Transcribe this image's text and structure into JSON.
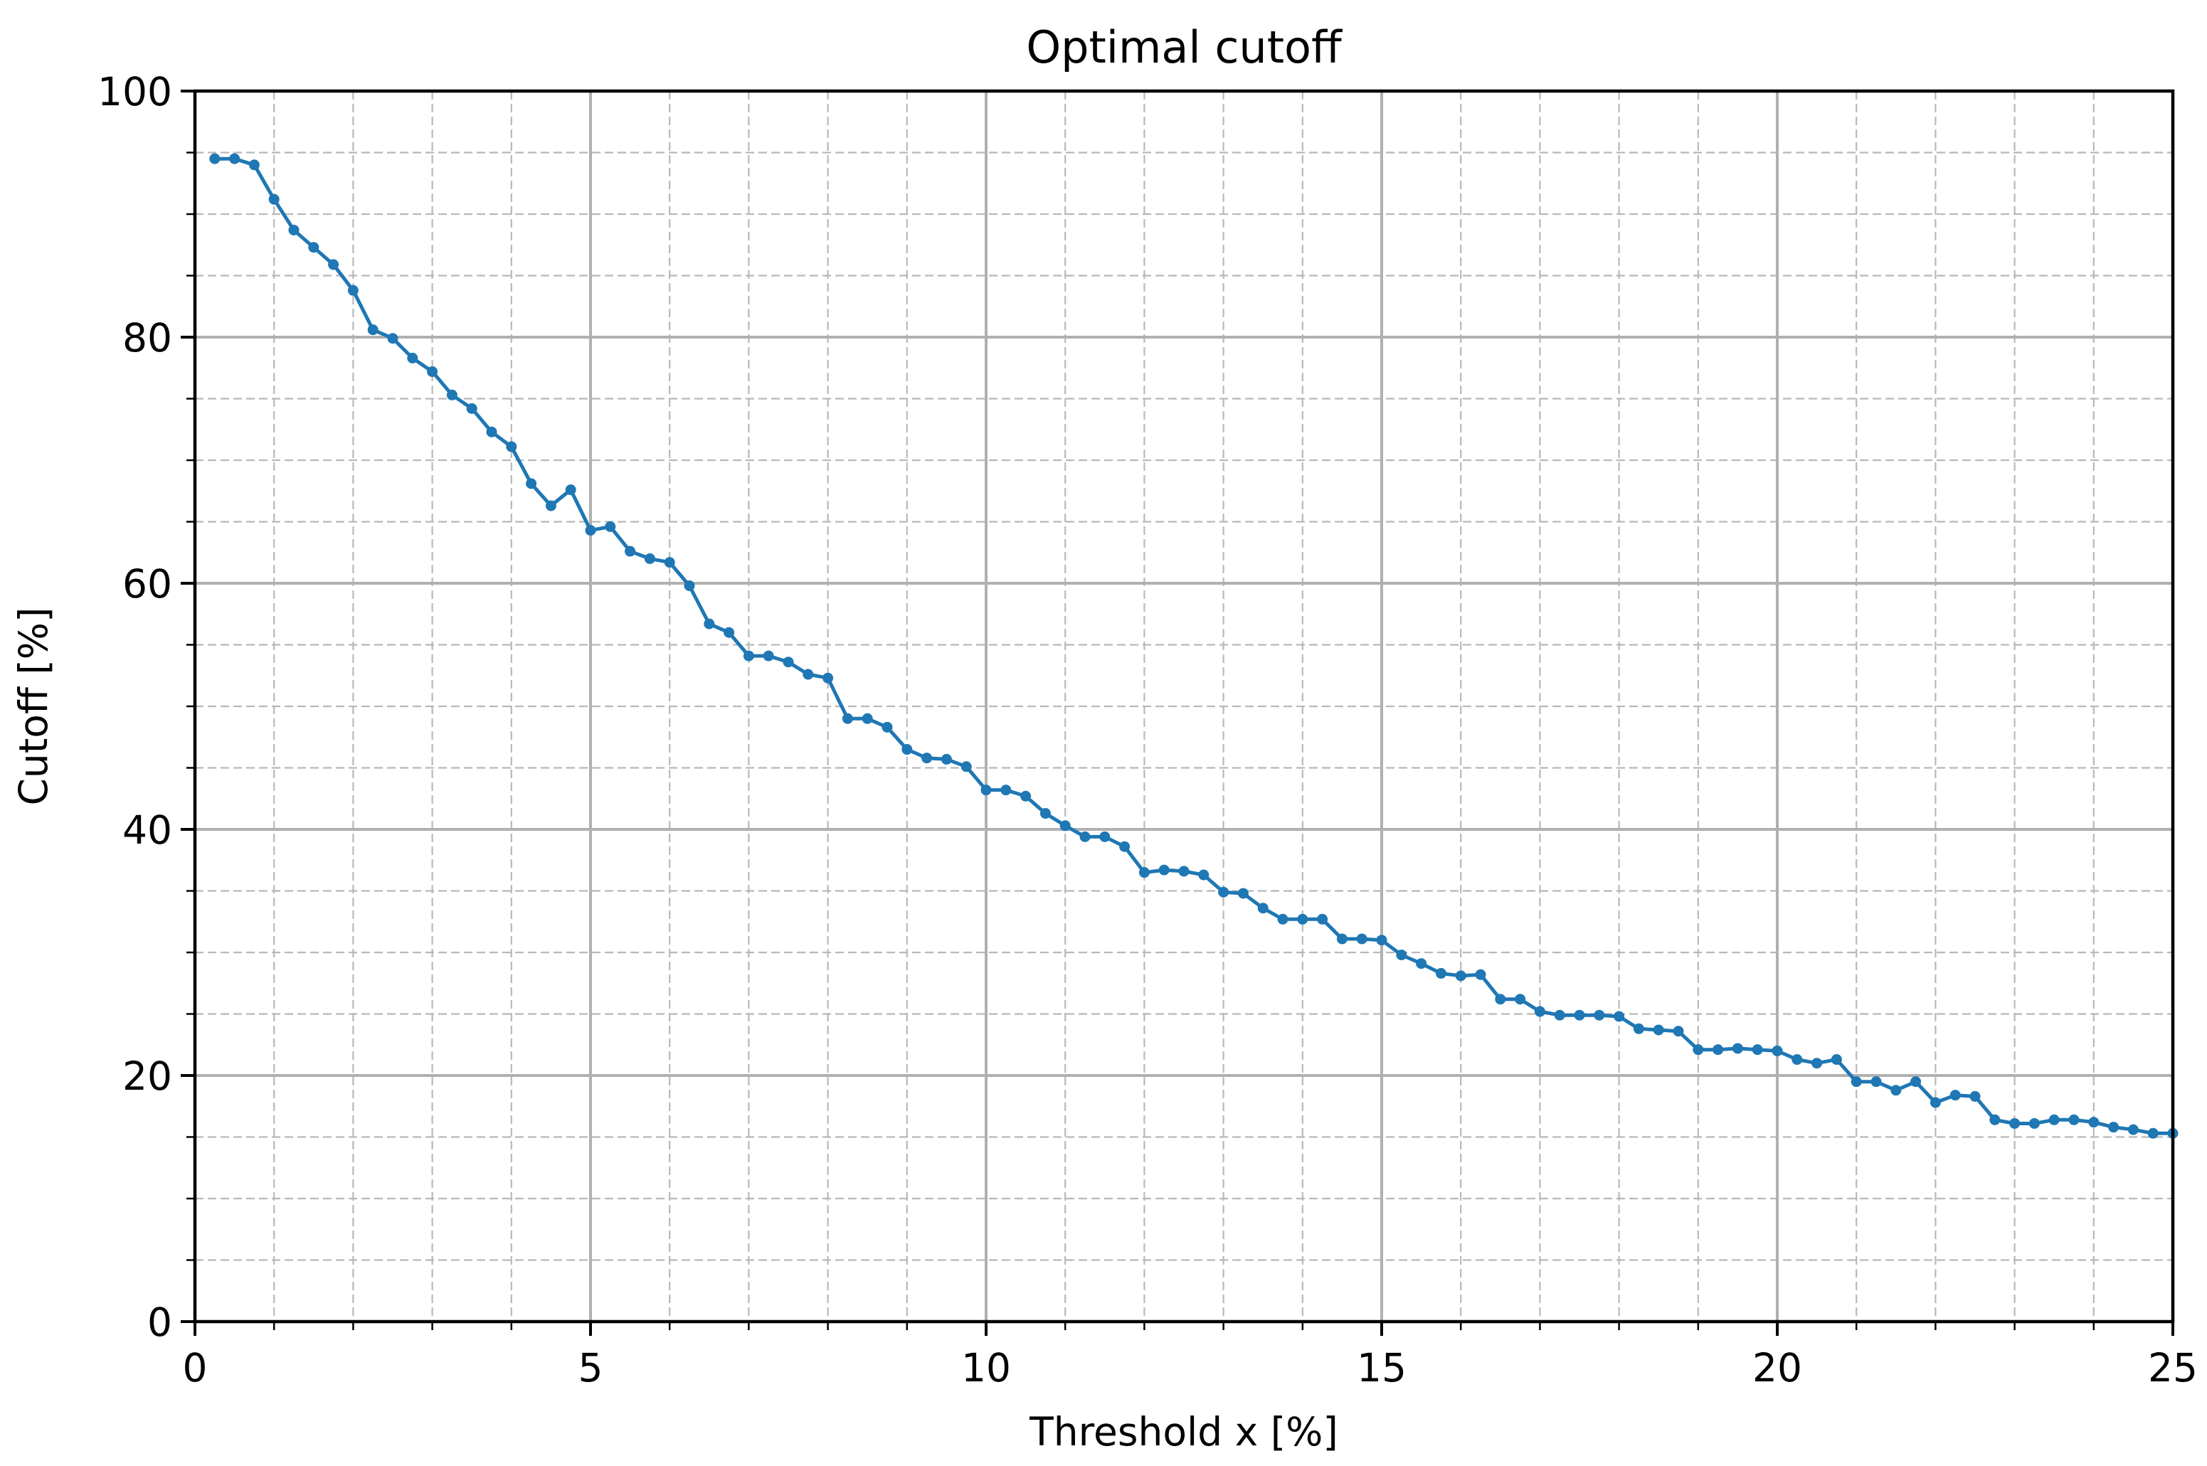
{
  "chart_data": {
    "type": "line",
    "title": "Optimal cutoff",
    "xlabel": "Threshold x [%]",
    "ylabel": "Cutoff [%]",
    "xlim": [
      0,
      25
    ],
    "ylim": [
      0,
      100
    ],
    "xticks": [
      0,
      5,
      10,
      15,
      20,
      25
    ],
    "yticks": [
      0,
      20,
      40,
      60,
      80,
      100
    ],
    "x_minor_step": 1,
    "y_minor_step": 5,
    "grid": true,
    "legend": false,
    "series": [
      {
        "color": "#1f77b4",
        "marker": "circle",
        "x": [
          0.25,
          0.5,
          0.75,
          1.0,
          1.25,
          1.5,
          1.75,
          2.0,
          2.25,
          2.5,
          2.75,
          3.0,
          3.25,
          3.5,
          3.75,
          4.0,
          4.25,
          4.5,
          4.75,
          5.0,
          5.25,
          5.5,
          5.75,
          6.0,
          6.25,
          6.5,
          6.75,
          7.0,
          7.25,
          7.5,
          7.75,
          8.0,
          8.25,
          8.5,
          8.75,
          9.0,
          9.25,
          9.5,
          9.75,
          10.0,
          10.25,
          10.5,
          10.75,
          11.0,
          11.25,
          11.5,
          11.75,
          12.0,
          12.25,
          12.5,
          12.75,
          13.0,
          13.25,
          13.5,
          13.75,
          14.0,
          14.25,
          14.5,
          14.75,
          15.0,
          15.25,
          15.5,
          15.75,
          16.0,
          16.25,
          16.5,
          16.75,
          17.0,
          17.25,
          17.5,
          17.75,
          18.0,
          18.25,
          18.5,
          18.75,
          19.0,
          19.25,
          19.5,
          19.75,
          20.0,
          20.25,
          20.5,
          20.75,
          21.0,
          21.25,
          21.5,
          21.75,
          22.0,
          22.25,
          22.5,
          22.75,
          23.0,
          23.25,
          23.5,
          23.75,
          24.0,
          24.25,
          24.5,
          24.75,
          25.0
        ],
        "y": [
          94.5,
          94.5,
          94.0,
          91.2,
          88.7,
          87.3,
          85.9,
          83.8,
          80.6,
          79.9,
          78.3,
          77.2,
          75.3,
          74.2,
          72.3,
          71.1,
          68.1,
          66.3,
          67.6,
          64.3,
          64.6,
          62.6,
          62.0,
          61.7,
          59.8,
          56.7,
          56.0,
          54.1,
          54.1,
          53.6,
          52.6,
          52.3,
          49.0,
          49.0,
          48.3,
          46.5,
          45.8,
          45.7,
          45.1,
          43.2,
          43.2,
          42.7,
          41.3,
          40.3,
          39.4,
          39.4,
          38.6,
          36.5,
          36.7,
          36.6,
          36.3,
          34.9,
          34.8,
          33.6,
          32.7,
          32.7,
          32.7,
          31.1,
          31.1,
          31.0,
          29.8,
          29.1,
          28.3,
          28.1,
          28.2,
          26.2,
          26.2,
          25.2,
          24.9,
          24.9,
          24.9,
          24.8,
          23.8,
          23.7,
          23.6,
          22.1,
          22.1,
          22.2,
          22.1,
          22.0,
          21.3,
          21.0,
          21.3,
          19.5,
          19.5,
          18.8,
          19.5,
          17.8,
          18.4,
          18.3,
          16.4,
          16.1,
          16.1,
          16.4,
          16.4,
          16.2,
          15.8,
          15.6,
          15.3,
          15.3
        ]
      }
    ]
  }
}
